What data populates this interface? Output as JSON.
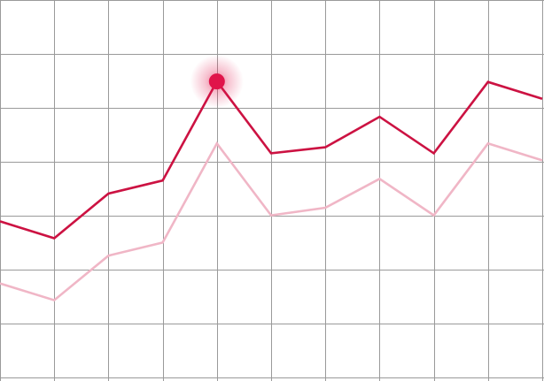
{
  "chart_data": {
    "type": "line",
    "title": "",
    "xlabel": "",
    "ylabel": "",
    "x": [
      0,
      1,
      2,
      3,
      4,
      5,
      6,
      7,
      8,
      9,
      10
    ],
    "ylim": [
      0,
      7
    ],
    "grid": true,
    "legend": "none",
    "series": [
      {
        "values": [
          2.95,
          2.64,
          3.46,
          3.7,
          5.52,
          4.2,
          4.31,
          4.87,
          4.2,
          5.51,
          5.2
        ],
        "color": "#cc1242",
        "emphasis": "primary"
      },
      {
        "values": [
          1.81,
          1.5,
          2.32,
          2.56,
          4.38,
          3.06,
          3.2,
          3.73,
          3.06,
          4.38,
          4.07
        ],
        "color": "#f0b6c6",
        "emphasis": "secondary"
      }
    ],
    "highlight": {
      "series_index": 0,
      "point_index": 4,
      "color": "#e0144a"
    }
  }
}
